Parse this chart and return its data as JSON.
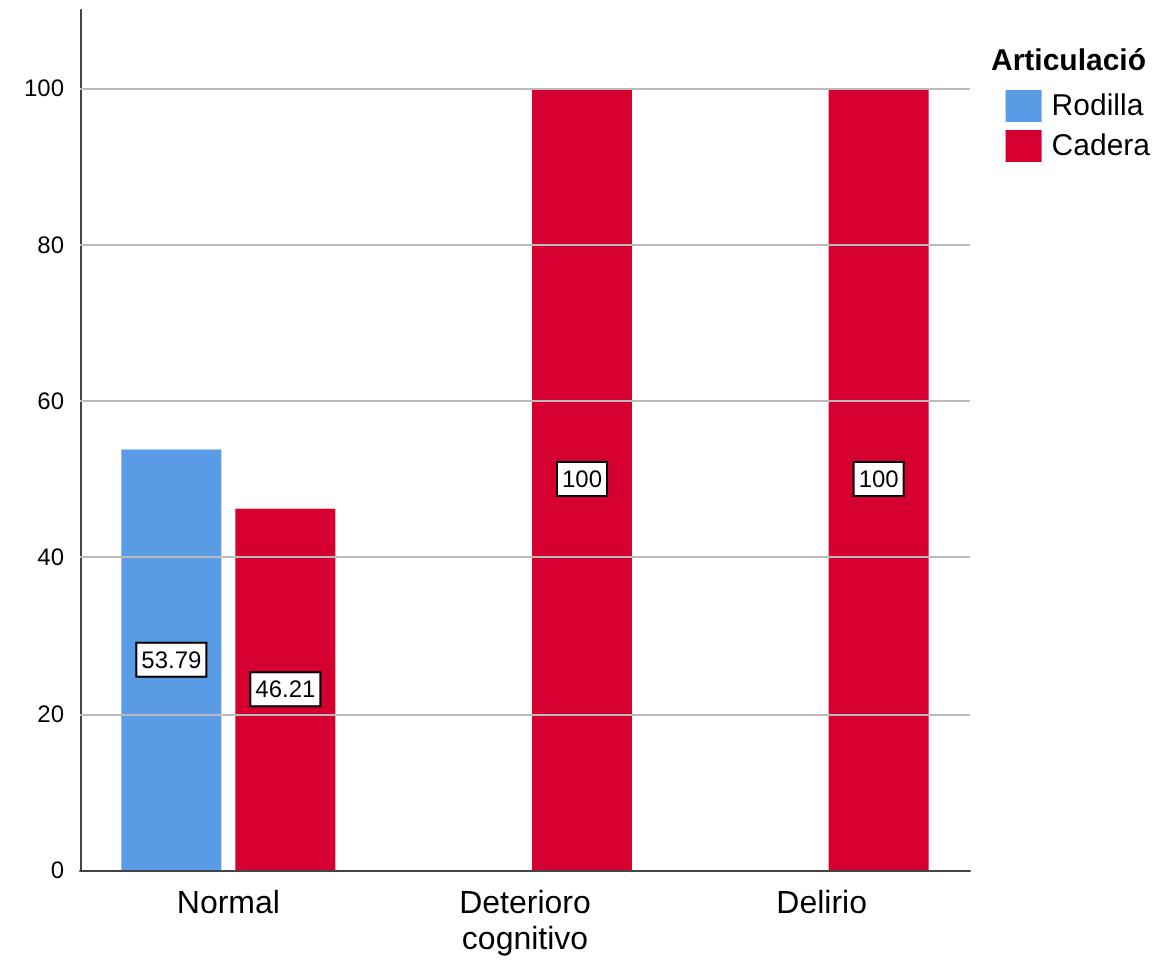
{
  "chart_data": {
    "type": "bar",
    "categories": [
      "Normal",
      "Deterioro cognitivo",
      "Delirio"
    ],
    "series": [
      {
        "name": "Rodilla",
        "color": "#5a9be6",
        "values": [
          53.79,
          null,
          null
        ]
      },
      {
        "name": "Cadera",
        "color": "#d5002f",
        "values": [
          46.21,
          100,
          100
        ]
      }
    ],
    "legend_title": "Articulació",
    "legend": "top right",
    "ylim": [
      0,
      110
    ],
    "yticks": [
      0,
      20,
      40,
      60,
      80,
      100
    ],
    "grid": "y",
    "data_labels": true
  }
}
